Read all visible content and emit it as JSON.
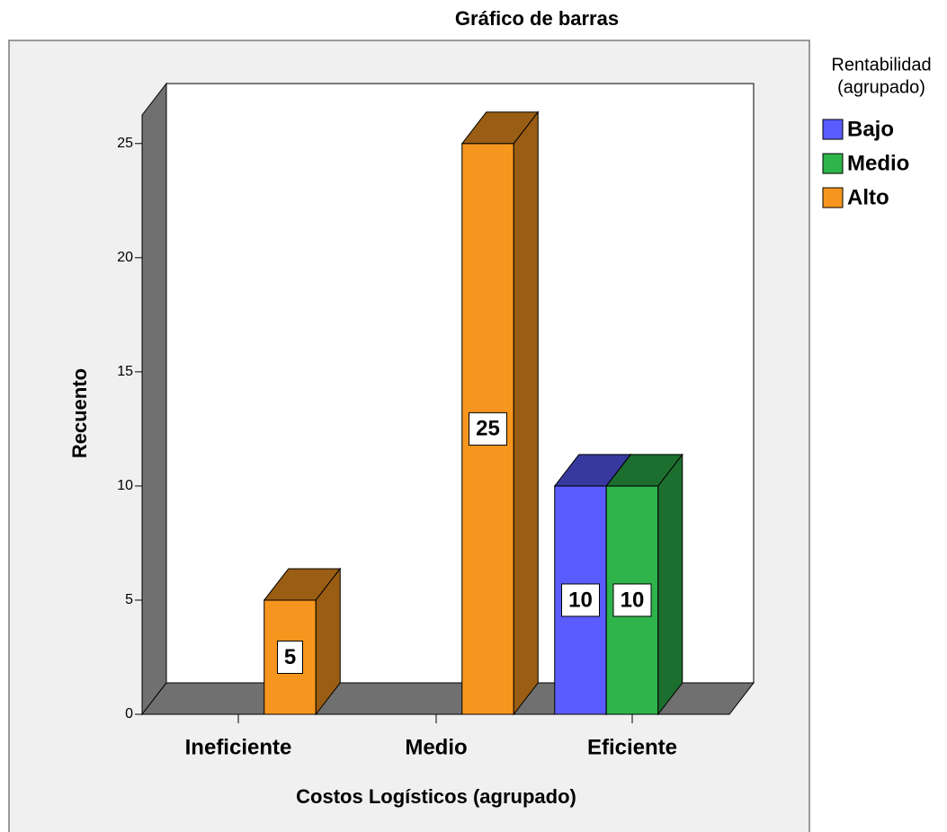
{
  "chart_data": {
    "type": "bar3d",
    "title": "Gráfico de barras",
    "x_label": "Costos Logísticos (agrupado)",
    "y_label": "Recuento",
    "legend_title": [
      "Rentabilidad",
      "(agrupado)"
    ],
    "categories": [
      "Ineficiente",
      "Medio",
      "Eficiente"
    ],
    "series": [
      {
        "name": "Bajo",
        "color": "#5a5cff",
        "values": [
          null,
          null,
          10
        ]
      },
      {
        "name": "Medio",
        "color": "#2fb34b",
        "values": [
          null,
          null,
          10
        ]
      },
      {
        "name": "Alto",
        "color": "#f7961e",
        "values": [
          5,
          25,
          null
        ]
      }
    ],
    "ylim": [
      0,
      26.25
    ],
    "yticks": [
      0,
      5,
      10,
      15,
      20,
      25
    ],
    "legend": "right"
  }
}
